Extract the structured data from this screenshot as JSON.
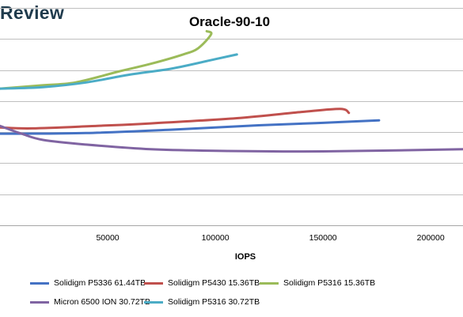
{
  "brand": {
    "text": "Review"
  },
  "chart_data": {
    "type": "line",
    "title": "Oracle-90-10",
    "xlabel": "IOPS",
    "ylabel": "",
    "xlim": [
      0,
      215000
    ],
    "ylim": [
      0,
      7
    ],
    "x_ticks": [
      50000,
      100000,
      150000,
      200000
    ],
    "y_ticks": [],
    "grid": true,
    "legend_position": "bottom",
    "series": [
      {
        "name": "Solidigm P5336 61.44TB",
        "color": "#4472C4",
        "points": [
          [
            0,
            2.95
          ],
          [
            10000,
            2.95
          ],
          [
            40000,
            2.97
          ],
          [
            80000,
            3.08
          ],
          [
            120000,
            3.22
          ],
          [
            150000,
            3.3
          ],
          [
            176000,
            3.38
          ]
        ]
      },
      {
        "name": "Solidigm P5430 15.36TB",
        "color": "#C0504D",
        "points": [
          [
            0,
            3.15
          ],
          [
            15000,
            3.12
          ],
          [
            45000,
            3.2
          ],
          [
            70000,
            3.28
          ],
          [
            110000,
            3.45
          ],
          [
            140000,
            3.65
          ],
          [
            158000,
            3.75
          ],
          [
            162000,
            3.62
          ]
        ]
      },
      {
        "name": "Solidigm P5316 15.36TB",
        "color": "#9BBB59",
        "points": [
          [
            0,
            4.4
          ],
          [
            18000,
            4.5
          ],
          [
            35000,
            4.6
          ],
          [
            55000,
            4.95
          ],
          [
            70000,
            5.2
          ],
          [
            85000,
            5.5
          ],
          [
            92000,
            5.7
          ],
          [
            98000,
            6.15
          ],
          [
            96000,
            6.25
          ]
        ]
      },
      {
        "name": "Micron 6500 ION 30.72TB",
        "color": "#8064A2",
        "points": [
          [
            0,
            3.2
          ],
          [
            10000,
            2.95
          ],
          [
            20000,
            2.75
          ],
          [
            40000,
            2.6
          ],
          [
            70000,
            2.45
          ],
          [
            100000,
            2.4
          ],
          [
            150000,
            2.38
          ],
          [
            215000,
            2.45
          ]
        ]
      },
      {
        "name": "Solidigm P5316 30.72TB",
        "color": "#4BACC6",
        "points": [
          [
            0,
            4.4
          ],
          [
            20000,
            4.45
          ],
          [
            40000,
            4.6
          ],
          [
            60000,
            4.85
          ],
          [
            80000,
            5.05
          ],
          [
            100000,
            5.35
          ],
          [
            110000,
            5.5
          ]
        ]
      }
    ]
  }
}
